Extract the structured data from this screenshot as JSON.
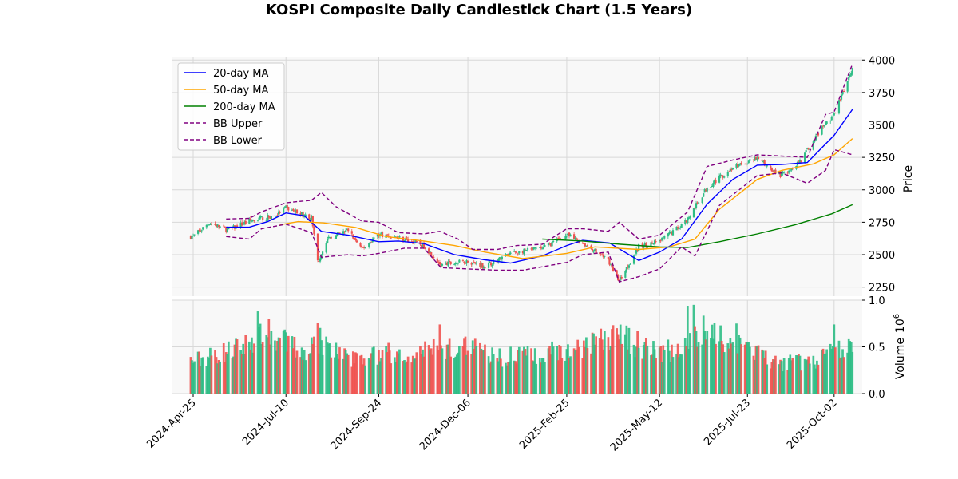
{
  "chart_data": {
    "type": "candlestick",
    "title": "KOSPI Composite Daily Candlestick Chart (1.5 Years)",
    "xlabel": "",
    "ylabel": "Price",
    "volume_ylabel": "Volume",
    "volume_multiplier": "10",
    "volume_multiplier_exp": "6",
    "x_range": [
      "2024-04-08",
      "2025-10-25"
    ],
    "price_ylim": [
      2180,
      4020
    ],
    "volume_ylim": [
      0,
      1.0
    ],
    "x_ticks": [
      "2024-Apr-25",
      "2024-Jul-10",
      "2024-Sep-24",
      "2024-Dec-06",
      "2025-Feb-25",
      "2025-May-12",
      "2025-Jul-23",
      "2025-Oct-02"
    ],
    "x_tick_dates": [
      "2024-04-25",
      "2024-07-10",
      "2024-09-24",
      "2024-12-06",
      "2025-02-25",
      "2025-05-12",
      "2025-07-23",
      "2025-10-02"
    ],
    "price_ticks": [
      "2250",
      "2500",
      "2750",
      "3000",
      "3250",
      "3500",
      "3750",
      "4000"
    ],
    "volume_ticks": [
      "0.0",
      "0.5",
      "1.0"
    ],
    "grid": true,
    "legend_position": "top-left",
    "colors": {
      "up": "#2ebd85",
      "down": "#ef5350",
      "ma20": "#0000ff",
      "ma50": "#ffa500",
      "ma200": "#008000",
      "bb": "#800080",
      "panel_bg": "#f8f8f8",
      "grid": "#d8d8d8"
    },
    "price_anchors": [
      [
        "2024-04-25",
        2640
      ],
      [
        "2024-05-08",
        2745
      ],
      [
        "2024-05-24",
        2690
      ],
      [
        "2024-06-10",
        2760
      ],
      [
        "2024-07-01",
        2800
      ],
      [
        "2024-07-10",
        2860
      ],
      [
        "2024-07-31",
        2780
      ],
      [
        "2024-08-05",
        2440
      ],
      [
        "2024-08-12",
        2610
      ],
      [
        "2024-08-30",
        2690
      ],
      [
        "2024-09-10",
        2540
      ],
      [
        "2024-09-24",
        2660
      ],
      [
        "2024-10-15",
        2620
      ],
      [
        "2024-10-31",
        2570
      ],
      [
        "2024-11-14",
        2420
      ],
      [
        "2024-12-06",
        2450
      ],
      [
        "2024-12-20",
        2410
      ],
      [
        "2025-01-10",
        2510
      ],
      [
        "2025-02-05",
        2550
      ],
      [
        "2025-02-25",
        2650
      ],
      [
        "2025-03-10",
        2590
      ],
      [
        "2025-03-31",
        2460
      ],
      [
        "2025-04-09",
        2300
      ],
      [
        "2025-04-25",
        2560
      ],
      [
        "2025-05-12",
        2600
      ],
      [
        "2025-06-04",
        2770
      ],
      [
        "2025-06-20",
        3020
      ],
      [
        "2025-07-11",
        3170
      ],
      [
        "2025-07-31",
        3240
      ],
      [
        "2025-08-20",
        3110
      ],
      [
        "2025-09-05",
        3230
      ],
      [
        "2025-09-23",
        3490
      ],
      [
        "2025-10-02",
        3580
      ],
      [
        "2025-10-17",
        3940
      ]
    ],
    "volume_anchors": [
      [
        "2024-04-25",
        0.35
      ],
      [
        "2024-06-05",
        0.5
      ],
      [
        "2024-06-20",
        0.68
      ],
      [
        "2024-07-01",
        0.6
      ],
      [
        "2024-07-25",
        0.45
      ],
      [
        "2024-08-05",
        0.58
      ],
      [
        "2024-08-30",
        0.38
      ],
      [
        "2024-09-24",
        0.42
      ],
      [
        "2024-11-05",
        0.48
      ],
      [
        "2024-12-06",
        0.55
      ],
      [
        "2024-12-30",
        0.38
      ],
      [
        "2025-02-05",
        0.45
      ],
      [
        "2025-03-10",
        0.48
      ],
      [
        "2025-04-09",
        0.62
      ],
      [
        "2025-05-12",
        0.42
      ],
      [
        "2025-06-05",
        0.55
      ],
      [
        "2025-06-20",
        0.7
      ],
      [
        "2025-07-15",
        0.52
      ],
      [
        "2025-08-15",
        0.32
      ],
      [
        "2025-09-15",
        0.35
      ],
      [
        "2025-10-02",
        0.45
      ],
      [
        "2025-10-17",
        0.5
      ]
    ],
    "volume_peaks": [
      [
        "2024-06-17",
        0.88
      ],
      [
        "2024-08-05",
        0.76
      ],
      [
        "2024-11-13",
        0.74
      ],
      [
        "2025-04-07",
        0.7
      ],
      [
        "2025-06-04",
        0.94
      ],
      [
        "2025-06-09",
        0.95
      ],
      [
        "2025-07-14",
        0.75
      ],
      [
        "2025-10-02",
        0.74
      ]
    ],
    "series": [
      {
        "name": "20-day MA",
        "color": "#0000ff",
        "dash": false,
        "values": [
          [
            "2024-05-22",
            2712
          ],
          [
            "2024-06-10",
            2712
          ],
          [
            "2024-06-25",
            2755
          ],
          [
            "2024-07-10",
            2822
          ],
          [
            "2024-07-25",
            2800
          ],
          [
            "2024-08-08",
            2680
          ],
          [
            "2024-08-30",
            2650
          ],
          [
            "2024-09-24",
            2600
          ],
          [
            "2024-10-10",
            2605
          ],
          [
            "2024-10-31",
            2585
          ],
          [
            "2024-11-25",
            2500
          ],
          [
            "2024-12-20",
            2460
          ],
          [
            "2025-01-10",
            2435
          ],
          [
            "2025-02-05",
            2490
          ],
          [
            "2025-02-25",
            2570
          ],
          [
            "2025-03-10",
            2610
          ],
          [
            "2025-04-01",
            2590
          ],
          [
            "2025-04-25",
            2455
          ],
          [
            "2025-05-12",
            2520
          ],
          [
            "2025-05-30",
            2620
          ],
          [
            "2025-06-20",
            2890
          ],
          [
            "2025-07-11",
            3080
          ],
          [
            "2025-07-31",
            3190
          ],
          [
            "2025-08-20",
            3195
          ],
          [
            "2025-09-10",
            3210
          ],
          [
            "2025-10-02",
            3420
          ],
          [
            "2025-10-17",
            3620
          ]
        ]
      },
      {
        "name": "50-day MA",
        "color": "#ffa500",
        "dash": false,
        "values": [
          [
            "2024-07-05",
            2730
          ],
          [
            "2024-07-20",
            2755
          ],
          [
            "2024-08-10",
            2745
          ],
          [
            "2024-09-05",
            2710
          ],
          [
            "2024-09-30",
            2640
          ],
          [
            "2024-10-31",
            2605
          ],
          [
            "2024-11-25",
            2570
          ],
          [
            "2024-12-20",
            2520
          ],
          [
            "2025-01-20",
            2470
          ],
          [
            "2025-02-25",
            2510
          ],
          [
            "2025-03-20",
            2560
          ],
          [
            "2025-04-25",
            2540
          ],
          [
            "2025-05-20",
            2560
          ],
          [
            "2025-06-10",
            2620
          ],
          [
            "2025-06-30",
            2850
          ],
          [
            "2025-07-31",
            3080
          ],
          [
            "2025-08-20",
            3150
          ],
          [
            "2025-09-15",
            3200
          ],
          [
            "2025-10-02",
            3270
          ],
          [
            "2025-10-17",
            3395
          ]
        ]
      },
      {
        "name": "200-day MA",
        "color": "#008000",
        "dash": false,
        "values": [
          [
            "2025-02-05",
            2620
          ],
          [
            "2025-03-10",
            2605
          ],
          [
            "2025-04-10",
            2580
          ],
          [
            "2025-05-12",
            2560
          ],
          [
            "2025-06-04",
            2555
          ],
          [
            "2025-06-30",
            2600
          ],
          [
            "2025-07-31",
            2660
          ],
          [
            "2025-08-31",
            2730
          ],
          [
            "2025-09-30",
            2815
          ],
          [
            "2025-10-17",
            2885
          ]
        ]
      },
      {
        "name": "BB Upper",
        "color": "#800080",
        "dash": true,
        "values": [
          [
            "2024-05-22",
            2775
          ],
          [
            "2024-06-10",
            2780
          ],
          [
            "2024-06-20",
            2830
          ],
          [
            "2024-07-10",
            2900
          ],
          [
            "2024-07-31",
            2920
          ],
          [
            "2024-08-08",
            2980
          ],
          [
            "2024-08-20",
            2870
          ],
          [
            "2024-09-10",
            2760
          ],
          [
            "2024-09-24",
            2750
          ],
          [
            "2024-10-10",
            2670
          ],
          [
            "2024-10-31",
            2660
          ],
          [
            "2024-11-13",
            2680
          ],
          [
            "2024-11-28",
            2620
          ],
          [
            "2024-12-10",
            2540
          ],
          [
            "2024-12-30",
            2540
          ],
          [
            "2025-01-15",
            2570
          ],
          [
            "2025-02-05",
            2580
          ],
          [
            "2025-02-25",
            2700
          ],
          [
            "2025-03-10",
            2700
          ],
          [
            "2025-03-31",
            2680
          ],
          [
            "2025-04-09",
            2750
          ],
          [
            "2025-04-25",
            2620
          ],
          [
            "2025-05-12",
            2650
          ],
          [
            "2025-06-04",
            2830
          ],
          [
            "2025-06-20",
            3180
          ],
          [
            "2025-07-11",
            3230
          ],
          [
            "2025-07-31",
            3270
          ],
          [
            "2025-08-20",
            3260
          ],
          [
            "2025-09-10",
            3250
          ],
          [
            "2025-09-25",
            3580
          ],
          [
            "2025-10-02",
            3600
          ],
          [
            "2025-10-17",
            3970
          ]
        ]
      },
      {
        "name": "BB Lower",
        "color": "#800080",
        "dash": true,
        "values": [
          [
            "2024-05-22",
            2640
          ],
          [
            "2024-06-10",
            2620
          ],
          [
            "2024-06-20",
            2700
          ],
          [
            "2024-07-10",
            2735
          ],
          [
            "2024-07-31",
            2670
          ],
          [
            "2024-08-08",
            2480
          ],
          [
            "2024-08-30",
            2500
          ],
          [
            "2024-09-10",
            2490
          ],
          [
            "2024-09-24",
            2510
          ],
          [
            "2024-10-15",
            2550
          ],
          [
            "2024-10-31",
            2550
          ],
          [
            "2024-11-14",
            2400
          ],
          [
            "2024-12-06",
            2390
          ],
          [
            "2024-12-30",
            2380
          ],
          [
            "2025-01-20",
            2380
          ],
          [
            "2025-02-25",
            2440
          ],
          [
            "2025-03-10",
            2500
          ],
          [
            "2025-03-31",
            2520
          ],
          [
            "2025-04-09",
            2290
          ],
          [
            "2025-04-25",
            2330
          ],
          [
            "2025-05-12",
            2390
          ],
          [
            "2025-05-30",
            2560
          ],
          [
            "2025-06-10",
            2490
          ],
          [
            "2025-06-30",
            2880
          ],
          [
            "2025-07-31",
            3110
          ],
          [
            "2025-08-20",
            3130
          ],
          [
            "2025-09-10",
            3050
          ],
          [
            "2025-09-25",
            3150
          ],
          [
            "2025-10-02",
            3310
          ],
          [
            "2025-10-17",
            3270
          ]
        ]
      }
    ]
  }
}
